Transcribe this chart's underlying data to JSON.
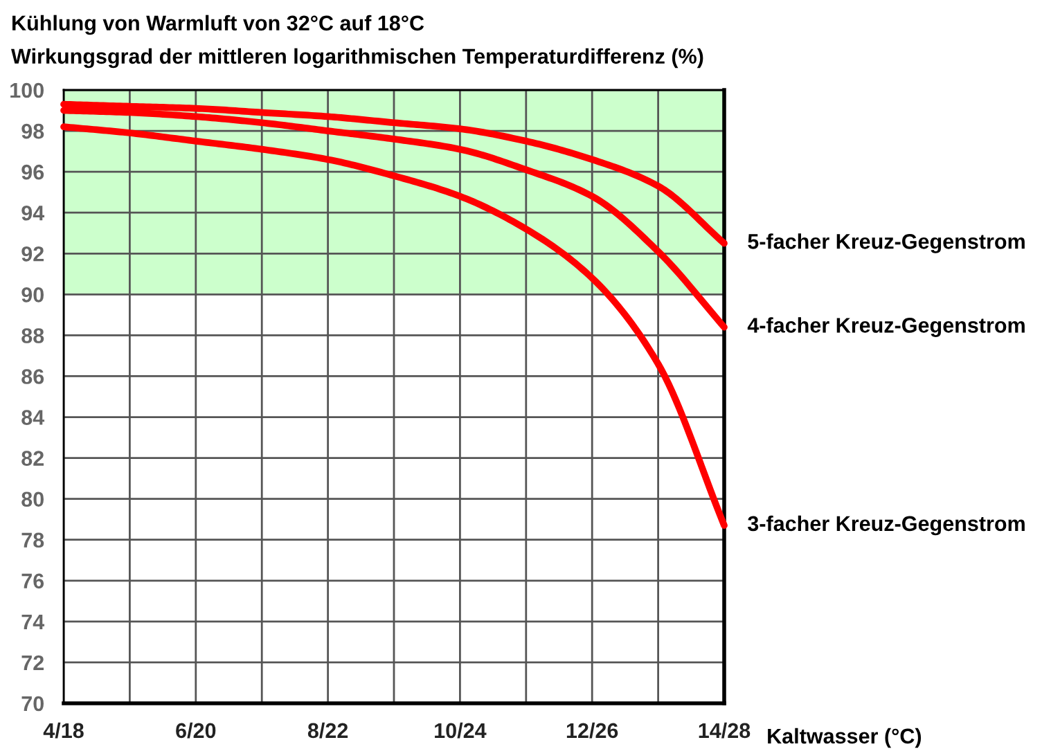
{
  "chart_data": {
    "type": "line",
    "title": "Kühlung von Warmluft von 32°C auf 18°C",
    "subtitle": "Wirkungsgrad der mittleren logarithmischen Temperaturdifferenz (%)",
    "xlabel": "Kaltwasser (°C)",
    "categories": [
      "4/18",
      null,
      "6/20",
      null,
      "8/22",
      null,
      "10/24",
      null,
      "12/26",
      null,
      "14/28"
    ],
    "ylim": [
      70,
      100
    ],
    "yticks": [
      70,
      72,
      74,
      76,
      78,
      80,
      82,
      84,
      86,
      88,
      90,
      92,
      94,
      96,
      98,
      100
    ],
    "grid": true,
    "legend": false,
    "marker": "none",
    "line_style": "solid",
    "bands": [
      {
        "axis": "y",
        "from": 90,
        "to": 100,
        "label": null,
        "color": "#ccffcc"
      }
    ],
    "series": [
      {
        "name": "5-facher Kreuz-Gegenstrom",
        "color": "#ff0000",
        "values": [
          99.3,
          99.2,
          99.1,
          98.9,
          98.7,
          98.4,
          98.1,
          97.5,
          96.6,
          95.3,
          92.5
        ]
      },
      {
        "name": "4-facher Kreuz-Gegenstrom",
        "color": "#ff0000",
        "values": [
          99.0,
          98.9,
          98.7,
          98.4,
          98.0,
          97.6,
          97.1,
          96.1,
          94.8,
          92.1,
          88.4
        ]
      },
      {
        "name": "3-facher Kreuz-Gegenstrom",
        "color": "#ff0000",
        "values": [
          98.2,
          97.9,
          97.5,
          97.1,
          96.6,
          95.8,
          94.8,
          93.2,
          90.8,
          86.6,
          78.7
        ]
      }
    ]
  }
}
